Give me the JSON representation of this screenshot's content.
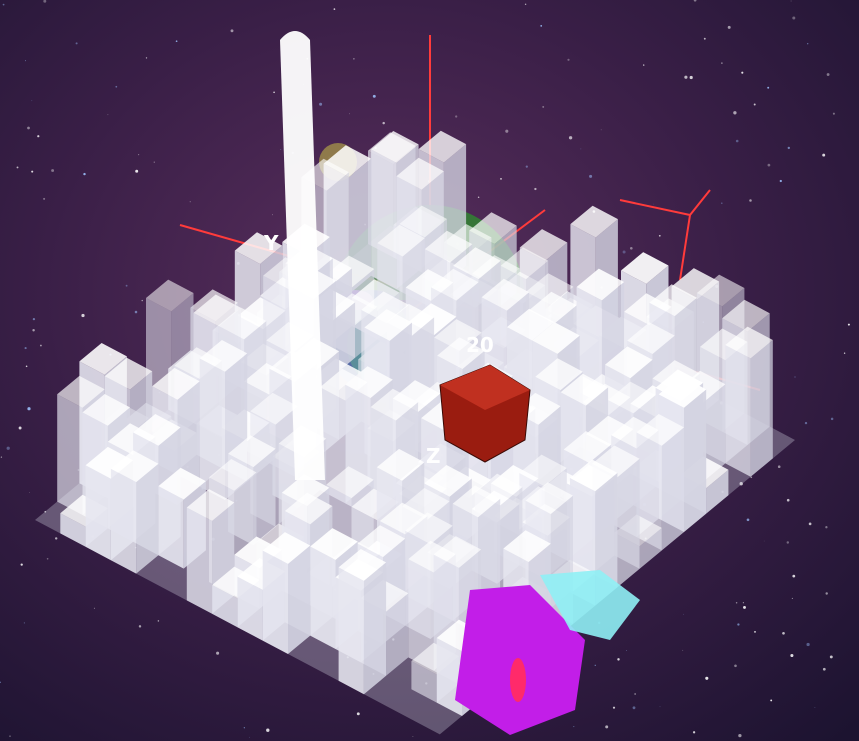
{
  "labels": {
    "y_axis": "Y",
    "tick": "20",
    "z_axis": "Z"
  }
}
